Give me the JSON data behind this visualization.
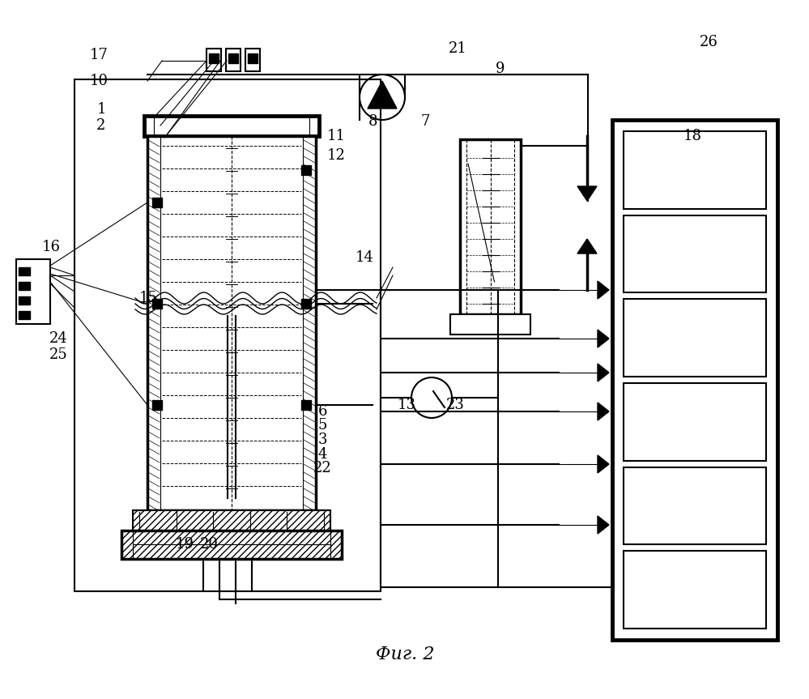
{
  "title": "Фиг. 2",
  "bg_color": "#ffffff"
}
